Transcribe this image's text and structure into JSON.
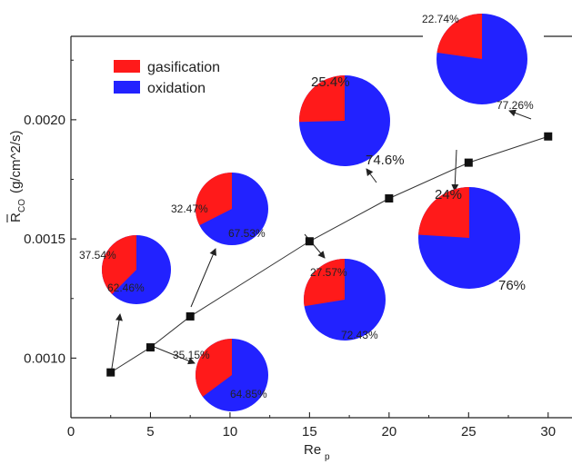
{
  "chart_data": {
    "type": "scatter",
    "xlabel_main": "Re",
    "xlabel_sub": "p",
    "ylabel_main": "R",
    "ylabel_sub": "CO",
    "ylabel_rest": " (g/cm^2/s)",
    "xlim": [
      0,
      31.5
    ],
    "ylim": [
      0.00075,
      0.00235
    ],
    "xticks": [
      0,
      5,
      10,
      15,
      20,
      25,
      30
    ],
    "xtick_labels": [
      "0",
      "5",
      "10",
      "15",
      "20",
      "25",
      "30"
    ],
    "yticks": [
      0.001,
      0.0015,
      0.002
    ],
    "ytick_labels": [
      "0.0010",
      "0.0015",
      "0.0020"
    ],
    "grid": false,
    "series": [
      {
        "x": [
          2.5,
          5,
          7.5,
          15,
          20,
          25,
          30
        ],
        "y": [
          0.00094,
          0.001045,
          0.001175,
          0.00149,
          0.00167,
          0.00182,
          0.00193
        ]
      }
    ],
    "legend": {
      "placement": "top-left",
      "entries": [
        {
          "label": "gasification",
          "color": "#ff1a1a"
        },
        {
          "label": "oxidation",
          "color": "#2222ff"
        }
      ]
    },
    "pies": [
      {
        "point_index": 0,
        "gasification": 37.54,
        "oxidation": 62.46,
        "gas_label": "37.54%",
        "oxi_label": "62.46%"
      },
      {
        "point_index": 1,
        "gasification": 35.15,
        "oxidation": 64.85,
        "gas_label": "35.15%",
        "oxi_label": "64.85%"
      },
      {
        "point_index": 2,
        "gasification": 32.47,
        "oxidation": 67.53,
        "gas_label": "32.47%",
        "oxi_label": "67.53%"
      },
      {
        "point_index": 3,
        "gasification": 27.57,
        "oxidation": 72.43,
        "gas_label": "27.57%",
        "oxi_label": "72.43%"
      },
      {
        "point_index": 4,
        "gasification": 25.4,
        "oxidation": 74.6,
        "gas_label": "25.4%",
        "oxi_label": "74.6%"
      },
      {
        "point_index": 5,
        "gasification": 24,
        "oxidation": 76,
        "gas_label": "24%",
        "oxi_label": "76%"
      },
      {
        "point_index": 6,
        "gasification": 22.74,
        "oxidation": 77.26,
        "gas_label": "22.74%",
        "oxi_label": "77.26%"
      }
    ]
  },
  "colors": {
    "gasification": "#ff1a1a",
    "oxidation": "#2222ff",
    "axis": "#222222",
    "marker": "#111111"
  }
}
